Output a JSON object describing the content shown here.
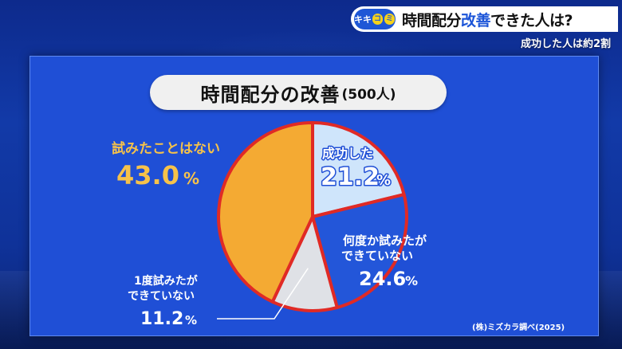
{
  "header": {
    "logo_text": [
      "キ",
      "キ",
      "コ",
      "ミ"
    ],
    "title_black_1": "時間配分",
    "title_blue": "改善",
    "title_black_2": "できた人は?",
    "subtitle": "成功した人は約2割"
  },
  "chart_data": {
    "type": "pie",
    "title": "時間配分の改善",
    "subtitle": "(500人)",
    "unit": "%",
    "slices": [
      {
        "name": "成功した",
        "value": 21.2,
        "color": "#cfe5fb"
      },
      {
        "name": "何度か試みたができていない",
        "label_lines": [
          "何度か試みたが",
          "できていない"
        ],
        "value": 24.6,
        "color": "#2356d9"
      },
      {
        "name": "1度試みたができていない",
        "label_lines": [
          "1度試みたが",
          "できていない"
        ],
        "value": 11.2,
        "color": "#dfe1e6"
      },
      {
        "name": "試みたことはない",
        "value": 43.0,
        "color": "#f4aa33"
      }
    ],
    "border_color": "#e02a25",
    "source": "(株)ミズカラ調べ(2025)"
  }
}
